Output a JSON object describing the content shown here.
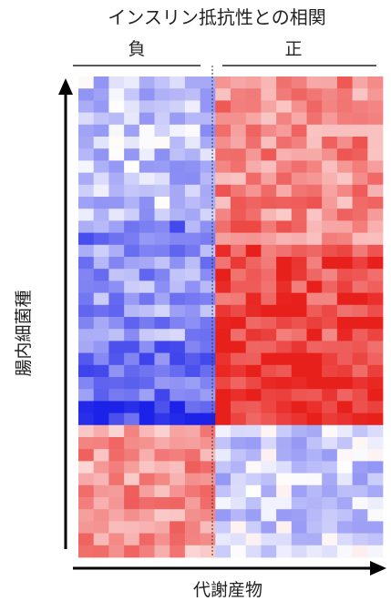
{
  "chart_data": {
    "type": "heatmap",
    "title": "インスリン抵抗性との相関",
    "groups": [
      "負",
      "正"
    ],
    "xlabel": "代謝産物",
    "ylabel": "腸内細菌種",
    "n_rows": 40,
    "n_cols": 20,
    "n_negative_cols": 9,
    "color_scale": {
      "negative": "#e8201c",
      "neutral": "#ffffff",
      "positive": "#1c22e8"
    },
    "row_blocks": [
      {
        "rows": 12,
        "neg": 0.25,
        "pos": -0.5
      },
      {
        "rows": 2,
        "neg": 0.55,
        "pos": -0.55
      },
      {
        "rows": 8,
        "neg": 0.45,
        "pos": -0.8
      },
      {
        "rows": 5,
        "neg": 0.65,
        "pos": -0.9
      },
      {
        "rows": 2,
        "neg": 0.9,
        "pos": -0.95
      },
      {
        "rows": 11,
        "neg": -0.45,
        "pos": 0.2
      }
    ]
  }
}
